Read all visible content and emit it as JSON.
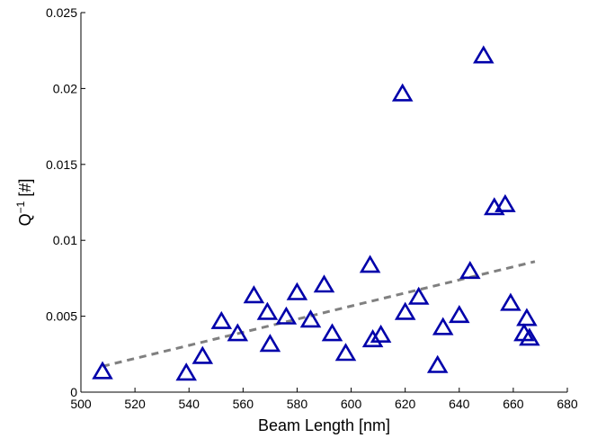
{
  "chart_data": {
    "type": "scatter",
    "xlabel": "Beam Length [nm]",
    "ylabel": "Q",
    "ylabel_sup": "−1",
    "ylabel_suffix": " [#]",
    "xlim": [
      500,
      680
    ],
    "ylim": [
      0,
      0.025
    ],
    "xticks": [
      500,
      520,
      540,
      560,
      580,
      600,
      620,
      640,
      660,
      680
    ],
    "yticks": [
      0,
      0.005,
      0.01,
      0.015,
      0.02,
      0.025
    ],
    "xtick_labels": [
      "500",
      "520",
      "540",
      "560",
      "580",
      "600",
      "620",
      "640",
      "660",
      "680"
    ],
    "ytick_labels": [
      "0",
      "0.005",
      "0.01",
      "0.015",
      "0.02",
      "0.025"
    ],
    "grid": false,
    "marker": "triangle",
    "marker_color": "#0000aa",
    "trend_color": "#808080",
    "series": [
      {
        "points": [
          {
            "x": 508,
            "y": 0.0013
          },
          {
            "x": 539,
            "y": 0.0012
          },
          {
            "x": 545,
            "y": 0.0023
          },
          {
            "x": 552,
            "y": 0.0046
          },
          {
            "x": 558,
            "y": 0.0038
          },
          {
            "x": 564,
            "y": 0.0063
          },
          {
            "x": 569,
            "y": 0.0052
          },
          {
            "x": 570,
            "y": 0.0031
          },
          {
            "x": 576,
            "y": 0.0049
          },
          {
            "x": 580,
            "y": 0.0065
          },
          {
            "x": 585,
            "y": 0.0047
          },
          {
            "x": 590,
            "y": 0.007
          },
          {
            "x": 593,
            "y": 0.0038
          },
          {
            "x": 598,
            "y": 0.0025
          },
          {
            "x": 607,
            "y": 0.0083
          },
          {
            "x": 608,
            "y": 0.0034
          },
          {
            "x": 611,
            "y": 0.0037
          },
          {
            "x": 619,
            "y": 0.0196
          },
          {
            "x": 620,
            "y": 0.0052
          },
          {
            "x": 625,
            "y": 0.0062
          },
          {
            "x": 632,
            "y": 0.0017
          },
          {
            "x": 634,
            "y": 0.0042
          },
          {
            "x": 640,
            "y": 0.005
          },
          {
            "x": 644,
            "y": 0.0079
          },
          {
            "x": 649,
            "y": 0.0221
          },
          {
            "x": 653,
            "y": 0.0121
          },
          {
            "x": 657,
            "y": 0.0123
          },
          {
            "x": 659,
            "y": 0.0058
          },
          {
            "x": 664,
            "y": 0.0038
          },
          {
            "x": 665,
            "y": 0.0048
          },
          {
            "x": 666,
            "y": 0.0035
          }
        ]
      }
    ],
    "trendline": {
      "style": "dashed",
      "x": [
        508,
        668
      ],
      "y": [
        0.0017,
        0.0086
      ]
    }
  }
}
